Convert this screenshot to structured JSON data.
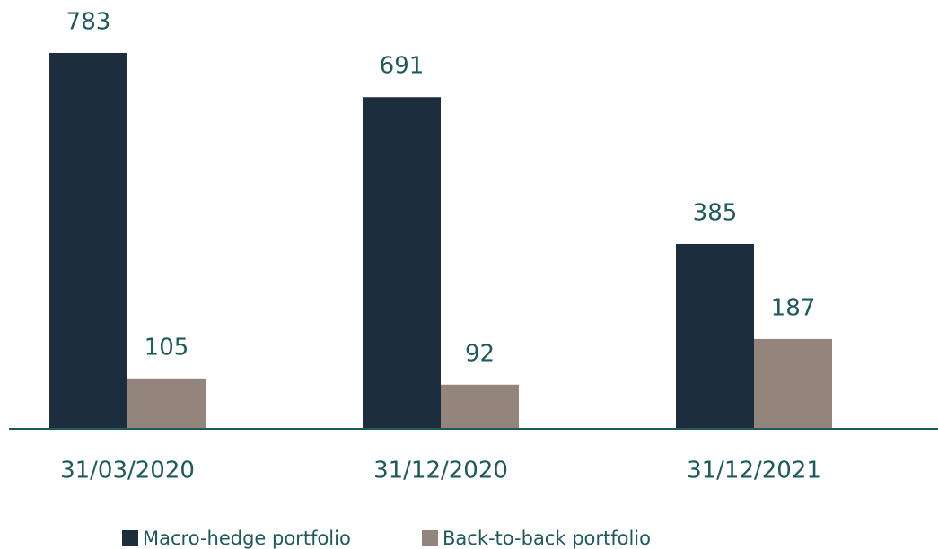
{
  "chart_data": {
    "type": "bar",
    "categories": [
      "31/03/2020",
      "31/12/2020",
      "31/12/2021"
    ],
    "series": [
      {
        "name": "Macro-hedge portfolio",
        "color": "#1c2e3d",
        "values": [
          783,
          691,
          385
        ]
      },
      {
        "name": "Back-to-back portfolio",
        "color": "#94857c",
        "values": [
          105,
          92,
          187
        ]
      }
    ]
  }
}
